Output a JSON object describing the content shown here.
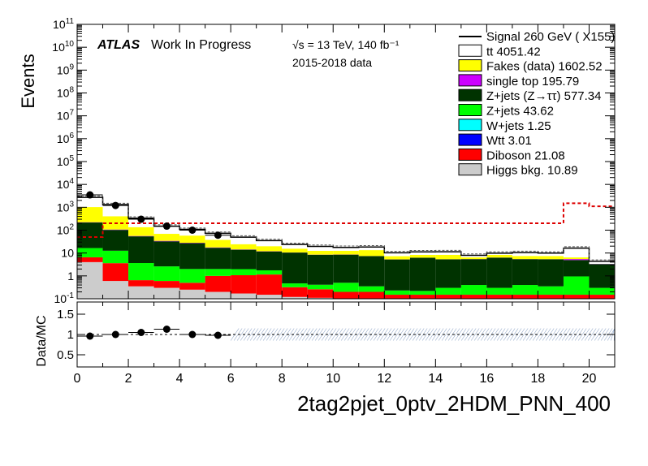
{
  "chart_data": [
    {
      "type": "bar",
      "stacked": true,
      "log_y": true,
      "ylabel": "Events",
      "ylim": [
        0.1,
        100000000000
      ],
      "xlim": [
        0,
        21
      ],
      "x_edges": [
        0,
        1,
        2,
        3,
        4,
        5,
        6,
        7,
        8,
        9,
        10,
        11,
        12,
        13,
        14,
        15,
        16,
        17,
        18,
        19,
        20,
        21
      ],
      "y_tick_labels": [
        "10^-1",
        "1",
        "10",
        "10^2",
        "10^3",
        "10^4",
        "10^5",
        "10^6",
        "10^7",
        "10^8",
        "10^9",
        "10^10",
        "10^11"
      ],
      "annotations": {
        "atlas": "ATLAS",
        "status": "Work In Progress",
        "energy": "√s = 13 TeV, 140 fb⁻¹",
        "data_period": "2015-2018 data"
      },
      "legend_position": "top-right",
      "series": [
        {
          "name": "Higgs bkg. 10.89",
          "color": "#cccccc",
          "values": [
            4,
            0.6,
            0.35,
            0.3,
            0.25,
            0.2,
            0.17,
            0.15,
            0.12,
            0.11,
            0.1,
            0.1,
            0.1,
            0.1,
            0.1,
            0.1,
            0.1,
            0.1,
            0.1,
            0.1,
            0.1
          ]
        },
        {
          "name": "Diboson 21.08",
          "color": "#ff0000",
          "values": [
            2.5,
            3,
            0.3,
            0.3,
            0.25,
            0.8,
            0.9,
            1,
            0.2,
            0.15,
            0.1,
            0.1,
            0.05,
            0.05,
            0.05,
            0.05,
            0.05,
            0.05,
            0.05,
            0.05,
            0.05
          ]
        },
        {
          "name": "Wtt 3.01",
          "color": "#0000ff",
          "values": [
            0,
            0,
            0,
            0,
            0,
            0,
            0,
            0,
            0,
            0,
            0,
            0,
            0,
            0,
            0,
            0,
            0,
            0,
            0,
            0,
            0
          ]
        },
        {
          "name": "W+jets 1.25",
          "color": "#00ffff",
          "values": [
            0,
            0,
            0,
            0,
            0,
            0,
            0,
            0,
            0,
            0,
            0,
            0,
            0,
            0,
            0,
            0,
            0,
            0,
            0,
            0,
            0
          ]
        },
        {
          "name": "Z+jets 43.62",
          "color": "#00ff00",
          "values": [
            10,
            9,
            3,
            2,
            1.5,
            1,
            0.9,
            0.6,
            0.15,
            0.15,
            0.3,
            0.15,
            0.08,
            0.07,
            0.15,
            0.25,
            0.15,
            0.25,
            0.2,
            0.8,
            0.15
          ]
        },
        {
          "name": "Z+jets (Z→ττ) 577.34",
          "color": "#003300",
          "values": [
            200,
            90,
            50,
            30,
            25,
            15,
            12,
            10,
            10,
            8,
            8,
            7,
            5,
            6,
            5,
            5,
            6,
            5,
            5,
            4,
            3
          ]
        },
        {
          "name": "single top 195.79",
          "color": "#cc00ff",
          "values": [
            6,
            4,
            2,
            1.5,
            1,
            0.6,
            0.4,
            0.2,
            0.1,
            0.1,
            0.1,
            0.05,
            0.05,
            0.05,
            0.05,
            0.05,
            0.05,
            0.05,
            0.05,
            0.5,
            0.05
          ]
        },
        {
          "name": "Fakes (data) 1602.52",
          "color": "#ffff00",
          "values": [
            800,
            300,
            80,
            35,
            30,
            20,
            10,
            8,
            5,
            4,
            4,
            6,
            2,
            2,
            3,
            1,
            2,
            2,
            2,
            1,
            0
          ]
        },
        {
          "name": "tt 4051.42",
          "color": "#ffffff",
          "values": [
            1700,
            900,
            200,
            80,
            50,
            35,
            25,
            15,
            8,
            7,
            5,
            5,
            3,
            3,
            3,
            1.5,
            1.5,
            3,
            2.5,
            10,
            1
          ]
        }
      ],
      "signal": {
        "name": "Signal 260 GeV ( X155)",
        "values": [
          50,
          200,
          200,
          200,
          200,
          200,
          200,
          200,
          200,
          200,
          200,
          200,
          200,
          200,
          200,
          200,
          200,
          200,
          200,
          1500,
          1100
        ]
      },
      "data": {
        "x": [
          0.5,
          1.5,
          2.5,
          3.5,
          4.5,
          5.5
        ],
        "y": [
          3500,
          1200,
          300,
          150,
          100,
          60
        ]
      }
    },
    {
      "type": "scatter",
      "ylabel": "Data/MC",
      "xlim": [
        0,
        21
      ],
      "ylim": [
        0.2,
        1.8
      ],
      "y_ticks": [
        0.5,
        1,
        1.5
      ],
      "x_ticks": [
        0,
        2,
        4,
        6,
        8,
        10,
        12,
        14,
        16,
        18,
        20
      ],
      "xlabel": "2tag2pjet_0ptv_2HDM_PNN_400",
      "ratio": {
        "x": [
          0.5,
          1.5,
          2.5,
          3.5,
          4.5,
          5.5
        ],
        "y": [
          0.96,
          1.0,
          1.05,
          1.13,
          1.0,
          0.98
        ]
      }
    }
  ]
}
